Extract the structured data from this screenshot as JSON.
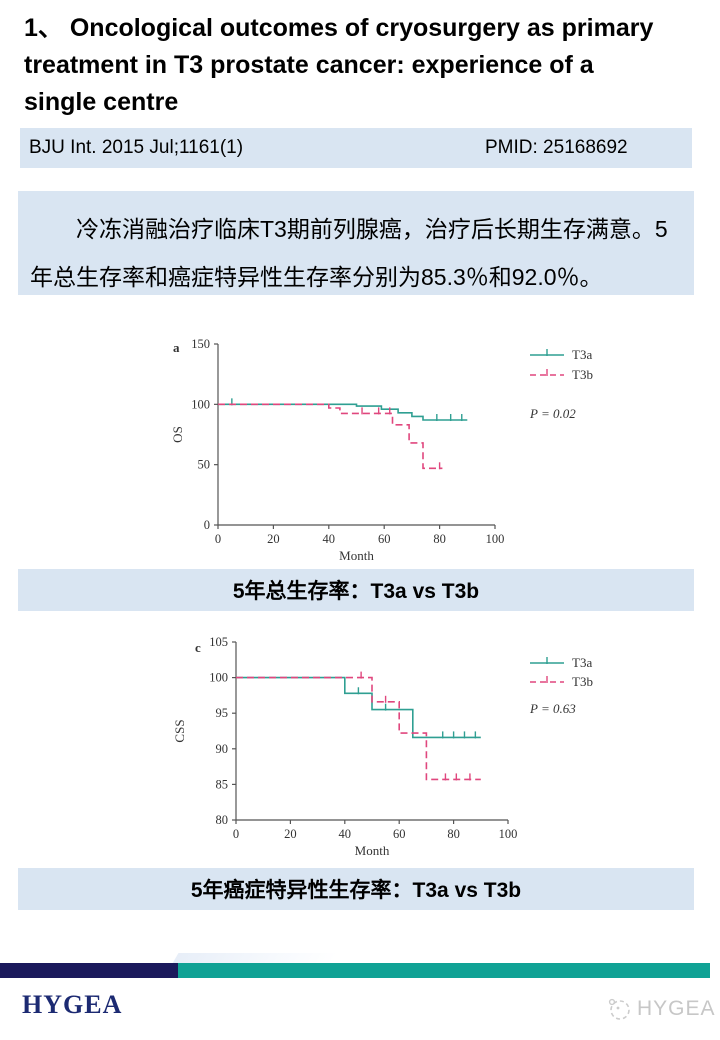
{
  "title": "1、 Oncological outcomes of cryosurgery as primary treatment in T3 prostate cancer: experience of a single centre",
  "citation": {
    "journal": "BJU Int. 2015 Jul;1161(1)",
    "pmid": "PMID: 25168692"
  },
  "abstract": "冷冻消融治疗临床T3期前列腺癌，治疗后长期生存满意。5年总生存率和癌症特异性生存率分别为85.3％和92.0％。",
  "captions": {
    "os": "5年总生存率：T3a vs T3b",
    "css": "5年癌症特异性生存率：T3a vs T3b"
  },
  "footer": {
    "logo": "HYGEA",
    "watermark": "HYGEA"
  },
  "colors": {
    "box_blue": "#d9e5f2",
    "footer_navy": "#1b1a5c",
    "footer_teal": "#10a295",
    "line_teal": "#2f9f92",
    "line_pink": "#e0477e"
  },
  "chart_data": [
    {
      "type": "line",
      "subtype": "kaplan-meier-step",
      "panel_label": "a",
      "xlabel": "Month",
      "ylabel": "OS",
      "xlim": [
        0,
        100
      ],
      "ylim": [
        0,
        150
      ],
      "xticks": [
        0,
        20,
        40,
        60,
        80,
        100
      ],
      "yticks": [
        0,
        50,
        100,
        150
      ],
      "p_value": "P = 0.02",
      "legend_position": "right-top",
      "grid": false,
      "series": [
        {
          "name": "T3a",
          "color": "#2f9f92",
          "dashed": false,
          "points": [
            [
              0,
              100
            ],
            [
              50,
              100
            ],
            [
              50,
              98.5
            ],
            [
              59,
              98.5
            ],
            [
              59,
              96
            ],
            [
              65,
              96
            ],
            [
              65,
              93
            ],
            [
              70,
              93
            ],
            [
              70,
              90
            ],
            [
              74,
              90
            ],
            [
              74,
              87
            ],
            [
              90,
              87
            ]
          ],
          "censors": [
            [
              5,
              100
            ],
            [
              79,
              87
            ],
            [
              84,
              87
            ],
            [
              88,
              87
            ]
          ]
        },
        {
          "name": "T3b",
          "color": "#e0477e",
          "dashed": true,
          "points": [
            [
              0,
              100
            ],
            [
              40,
              100
            ],
            [
              40,
              97
            ],
            [
              44,
              97
            ],
            [
              44,
              92.5
            ],
            [
              63,
              92.5
            ],
            [
              63,
              83
            ],
            [
              69,
              83
            ],
            [
              69,
              68
            ],
            [
              74,
              68
            ],
            [
              74,
              47
            ],
            [
              81,
              47
            ]
          ],
          "censors": [
            [
              52,
              92.5
            ],
            [
              58,
              92.5
            ],
            [
              62,
              92.5
            ],
            [
              80,
              47
            ]
          ]
        }
      ]
    },
    {
      "type": "line",
      "subtype": "kaplan-meier-step",
      "panel_label": "c",
      "xlabel": "Month",
      "ylabel": "CSS",
      "xlim": [
        0,
        100
      ],
      "ylim": [
        80,
        105
      ],
      "xticks": [
        0,
        20,
        40,
        60,
        80,
        100
      ],
      "yticks": [
        80,
        85,
        90,
        95,
        100,
        105
      ],
      "p_value": "P = 0.63",
      "legend_position": "right-top",
      "grid": false,
      "series": [
        {
          "name": "T3a",
          "color": "#2f9f92",
          "dashed": false,
          "points": [
            [
              0,
              100
            ],
            [
              40,
              100
            ],
            [
              40,
              97.8
            ],
            [
              50,
              97.8
            ],
            [
              50,
              95.5
            ],
            [
              65,
              95.5
            ],
            [
              65,
              91.6
            ],
            [
              90,
              91.6
            ]
          ],
          "censors": [
            [
              45,
              97.8
            ],
            [
              55,
              95.5
            ],
            [
              76,
              91.6
            ],
            [
              80,
              91.6
            ],
            [
              84,
              91.6
            ],
            [
              88,
              91.6
            ]
          ]
        },
        {
          "name": "T3b",
          "color": "#e0477e",
          "dashed": true,
          "points": [
            [
              0,
              100
            ],
            [
              50,
              100
            ],
            [
              50,
              96.6
            ],
            [
              60,
              96.6
            ],
            [
              60,
              92.2
            ],
            [
              70,
              92.2
            ],
            [
              70,
              85.7
            ],
            [
              90,
              85.7
            ]
          ],
          "censors": [
            [
              46,
              100
            ],
            [
              55,
              96.6
            ],
            [
              77,
              85.7
            ],
            [
              81,
              85.7
            ],
            [
              86,
              85.7
            ]
          ]
        }
      ]
    }
  ]
}
